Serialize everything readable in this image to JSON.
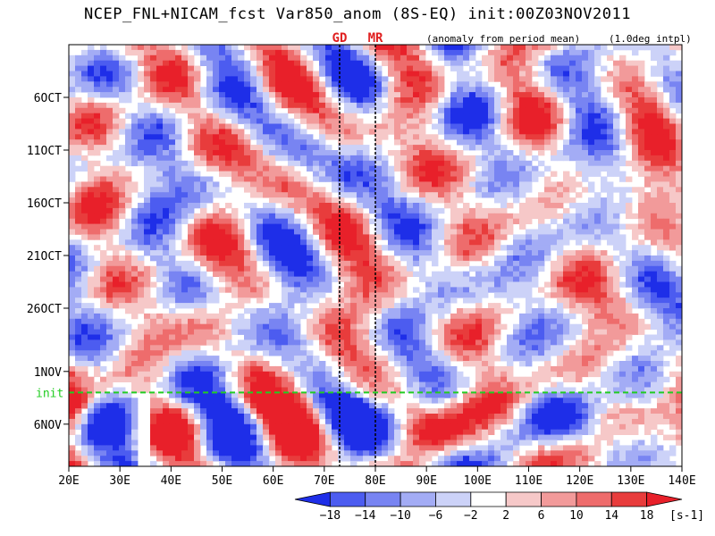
{
  "title": "NCEP_FNL+NICAM_fcst Var850_anom (8S-EQ) init:00Z03NOV2011",
  "note_left": "(anomaly from period mean)",
  "note_right": "(1.0deg intpl)",
  "colors": {
    "positive_strong": "#e8202a",
    "positive_light": "#f4b8b8",
    "negative_strong": "#1e2ee8",
    "negative_light": "#bcc4f4",
    "init_line": "#22cc22",
    "marker_text": "#e02020"
  },
  "chart_data": {
    "type": "heatmap",
    "description_axis_x": "longitude",
    "x_ticks": [
      "20E",
      "30E",
      "40E",
      "50E",
      "60E",
      "70E",
      "80E",
      "90E",
      "100E",
      "110E",
      "120E",
      "130E",
      "140E"
    ],
    "x_range": [
      20,
      140
    ],
    "y_ticks": [
      "6OCT",
      "11OCT",
      "16OCT",
      "21OCT",
      "26OCT",
      "1NOV",
      "6NOV"
    ],
    "y_tick_days": [
      6,
      11,
      16,
      21,
      26,
      32,
      37
    ],
    "y_range_days": [
      1,
      41
    ],
    "init_day": 34,
    "init_label": "init",
    "markers": [
      {
        "label": "GD",
        "lon": 73
      },
      {
        "label": "MR",
        "lon": 80
      }
    ],
    "missing_band_lon": [
      34,
      36
    ],
    "colorbar": {
      "ticks": [
        "-18",
        "-14",
        "-10",
        "-6",
        "-2",
        "2",
        "6",
        "10",
        "14",
        "18"
      ],
      "unit": "[s-1]",
      "colors": [
        "#1e2ee8",
        "#4c5cf0",
        "#7884f2",
        "#a3acf5",
        "#ccd2f8",
        "#ffffff",
        "#f6c8c8",
        "#f29a9a",
        "#ee6c6c",
        "#e83c3c",
        "#e8202a"
      ]
    }
  }
}
